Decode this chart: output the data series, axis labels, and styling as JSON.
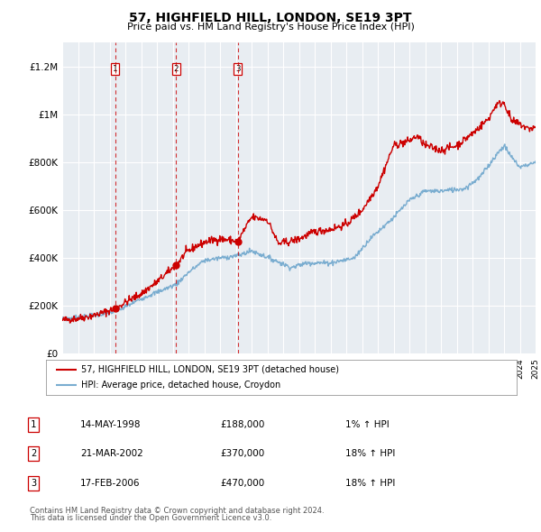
{
  "title": "57, HIGHFIELD HILL, LONDON, SE19 3PT",
  "subtitle": "Price paid vs. HM Land Registry's House Price Index (HPI)",
  "sale_dates": [
    1998.37,
    2002.22,
    2006.12
  ],
  "sale_prices": [
    188000,
    370000,
    470000
  ],
  "sale_labels": [
    "1",
    "2",
    "3"
  ],
  "sale_info": [
    [
      "1",
      "14-MAY-1998",
      "£188,000",
      "1% ↑ HPI"
    ],
    [
      "2",
      "21-MAR-2002",
      "£370,000",
      "18% ↑ HPI"
    ],
    [
      "3",
      "17-FEB-2006",
      "£470,000",
      "18% ↑ HPI"
    ]
  ],
  "legend_line1": "57, HIGHFIELD HILL, LONDON, SE19 3PT (detached house)",
  "legend_line2": "HPI: Average price, detached house, Croydon",
  "footer_line1": "Contains HM Land Registry data © Crown copyright and database right 2024.",
  "footer_line2": "This data is licensed under the Open Government Licence v3.0.",
  "red_line_color": "#cc0000",
  "blue_line_color": "#7aadd0",
  "plot_bg_color": "#e8edf2",
  "grid_color": "#d8dde2",
  "dashed_line_color": "#cc0000",
  "ylim": [
    0,
    1300000
  ],
  "xlim_start": 1995,
  "xlim_end": 2025,
  "ytick_labels": [
    "£0",
    "£200K",
    "£400K",
    "£600K",
    "£800K",
    "£1M",
    "£1.2M"
  ],
  "ytick_values": [
    0,
    200000,
    400000,
    600000,
    800000,
    1000000,
    1200000
  ],
  "red_anchors": [
    [
      1995.0,
      140000
    ],
    [
      1996.0,
      148000
    ],
    [
      1997.0,
      160000
    ],
    [
      1998.37,
      188000
    ],
    [
      1999.0,
      215000
    ],
    [
      2000.0,
      250000
    ],
    [
      2001.0,
      300000
    ],
    [
      2002.22,
      370000
    ],
    [
      2002.8,
      420000
    ],
    [
      2003.5,
      450000
    ],
    [
      2004.2,
      470000
    ],
    [
      2005.0,
      480000
    ],
    [
      2006.12,
      470000
    ],
    [
      2007.0,
      570000
    ],
    [
      2008.0,
      560000
    ],
    [
      2008.7,
      460000
    ],
    [
      2009.5,
      470000
    ],
    [
      2010.0,
      480000
    ],
    [
      2011.0,
      510000
    ],
    [
      2012.0,
      520000
    ],
    [
      2013.0,
      540000
    ],
    [
      2014.0,
      600000
    ],
    [
      2015.0,
      700000
    ],
    [
      2016.0,
      870000
    ],
    [
      2017.0,
      890000
    ],
    [
      2017.5,
      910000
    ],
    [
      2018.0,
      870000
    ],
    [
      2019.0,
      850000
    ],
    [
      2020.0,
      870000
    ],
    [
      2021.0,
      920000
    ],
    [
      2022.0,
      980000
    ],
    [
      2022.5,
      1040000
    ],
    [
      2023.0,
      1050000
    ],
    [
      2023.5,
      970000
    ],
    [
      2024.0,
      960000
    ],
    [
      2024.5,
      940000
    ],
    [
      2025.0,
      945000
    ]
  ],
  "blue_anchors": [
    [
      1995.0,
      145000
    ],
    [
      1997.0,
      160000
    ],
    [
      1998.37,
      175000
    ],
    [
      2000.0,
      230000
    ],
    [
      2002.22,
      290000
    ],
    [
      2003.0,
      340000
    ],
    [
      2004.0,
      390000
    ],
    [
      2005.0,
      400000
    ],
    [
      2006.12,
      410000
    ],
    [
      2007.0,
      430000
    ],
    [
      2008.5,
      390000
    ],
    [
      2009.5,
      360000
    ],
    [
      2010.5,
      380000
    ],
    [
      2012.0,
      380000
    ],
    [
      2013.5,
      400000
    ],
    [
      2014.5,
      480000
    ],
    [
      2016.0,
      570000
    ],
    [
      2017.0,
      640000
    ],
    [
      2018.0,
      680000
    ],
    [
      2019.0,
      680000
    ],
    [
      2020.5,
      690000
    ],
    [
      2021.5,
      740000
    ],
    [
      2022.5,
      830000
    ],
    [
      2023.0,
      870000
    ],
    [
      2023.5,
      820000
    ],
    [
      2024.0,
      780000
    ],
    [
      2024.5,
      790000
    ],
    [
      2025.0,
      800000
    ]
  ]
}
